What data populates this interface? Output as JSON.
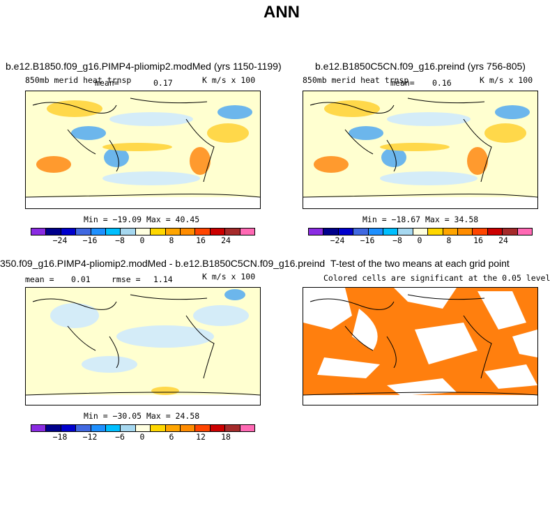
{
  "page_title": "ANN",
  "panels": [
    {
      "title": "b.e12.B1850.f09_g16.PIMP4-pliomip2.modMed (yrs 1150-1199)",
      "subtitle": "850mb merid heat trnsp",
      "stat_label": "mean=",
      "stat_value": "0.17",
      "units": "K m/s x 100",
      "minmax": "Min = −19.09 Max =  40.45",
      "colorbar_ticks": [
        "−24",
        "−16",
        "−8",
        "0",
        "8",
        "16",
        "24"
      ]
    },
    {
      "title": "b.e12.B1850C5CN.f09_g16.preind (yrs 756-805)",
      "subtitle": "850mb merid heat trnsp",
      "stat_label": "mean=",
      "stat_value": "0.16",
      "units": "K m/s x 100",
      "minmax": "Min = −18.67 Max =  34.58",
      "colorbar_ticks": [
        "−24",
        "−16",
        "−8",
        "0",
        "8",
        "16",
        "24"
      ]
    },
    {
      "title": "350.f09_g16.PIMP4-pliomip2.modMed - b.e12.B1850C5CN.f09_g16.preind",
      "stat_label": "mean =",
      "stat_value": "0.01",
      "rmse_label": "rmse =",
      "rmse_value": "1.14",
      "units": "K m/s x 100",
      "minmax": "Min = −30.05 Max =  24.58",
      "colorbar_ticks": [
        "−18",
        "−12",
        "−6",
        "0",
        "6",
        "12",
        "18"
      ]
    },
    {
      "title": "T-test of the two means at each grid point",
      "subtitle": "Colored cells are significant at the 0.05 level"
    }
  ],
  "colorbar_colors": [
    "#8a2be2",
    "#00008b",
    "#0000cd",
    "#4169e1",
    "#1e90ff",
    "#00bfff",
    "#a6d8f0",
    "#ffffe0",
    "#ffd700",
    "#ffa500",
    "#ff8c00",
    "#ff4500",
    "#cc0000",
    "#a52a2a",
    "#ff69b4"
  ],
  "colors": {
    "ocean_positive": "#ffd84a",
    "ocean_neutral_warm": "#ffffd0",
    "ocean_neutral_cool": "#d4ecf8",
    "ocean_negative": "#6cb6ec",
    "ttest_significant": "#ff7f0e"
  }
}
